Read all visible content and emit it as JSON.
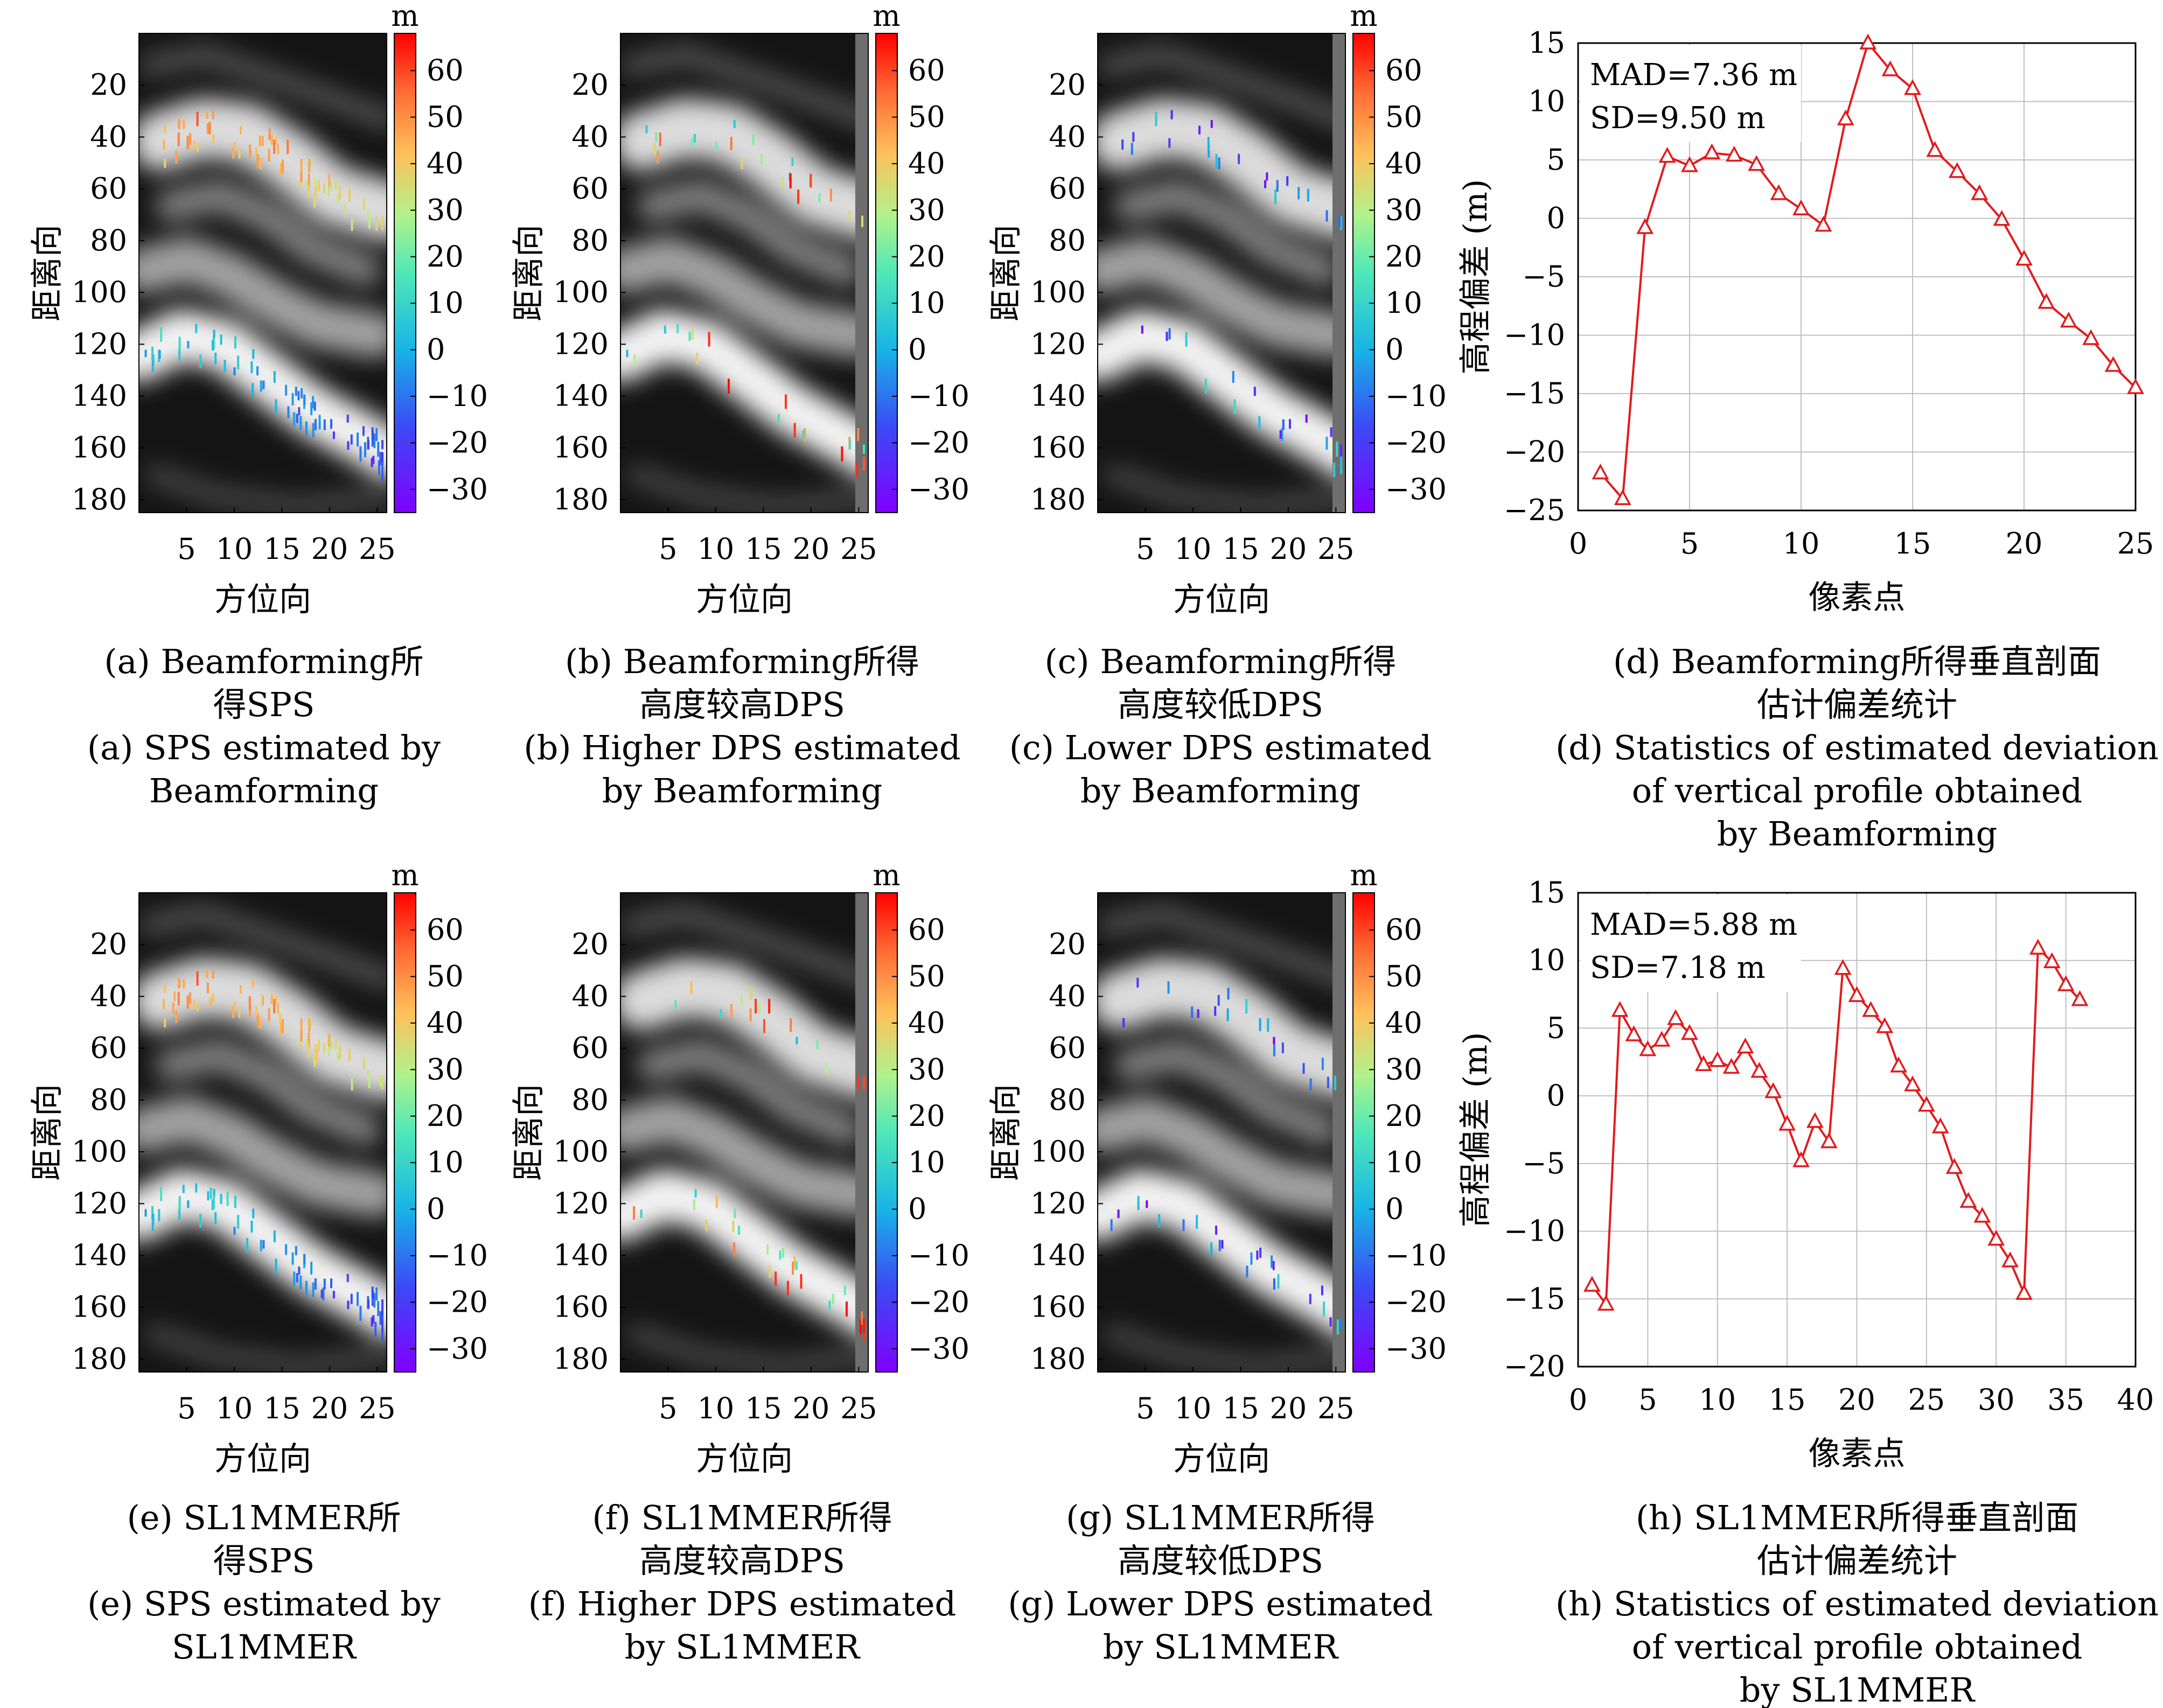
{
  "colors": {
    "line": "#e31a1c",
    "grid": "#bfbfbf",
    "axis": "#000000"
  },
  "colorbar": {
    "unit": "m",
    "ticks": [
      "60",
      "50",
      "40",
      "30",
      "20",
      "10",
      "0",
      "−10",
      "−20",
      "−30"
    ],
    "range": [
      -35,
      68
    ],
    "colormap": "rainbow (purple → blue → cyan → green → yellow → orange → red)"
  },
  "image_axes": {
    "ylabel": "距离向",
    "xlabel": "方位向",
    "yticks": [
      "20",
      "40",
      "60",
      "80",
      "100",
      "120",
      "140",
      "160",
      "180"
    ],
    "xticks": [
      "5",
      "10",
      "15",
      "20",
      "25"
    ]
  },
  "panels": [
    {
      "caption_cn": [
        "(a) Beamforming所",
        "得SPS"
      ],
      "caption_en": [
        "(a) SPS estimated by",
        "Beamforming"
      ]
    },
    {
      "caption_cn": [
        "(b) Beamforming所得",
        "高度较高DPS"
      ],
      "caption_en": [
        "(b) Higher DPS estimated",
        "by Beamforming"
      ]
    },
    {
      "caption_cn": [
        "(c) Beamforming所得",
        "高度较低DPS"
      ],
      "caption_en": [
        "(c) Lower DPS estimated",
        "by Beamforming"
      ]
    },
    {
      "caption_cn": [
        "(d) Beamforming所得垂直剖面",
        "估计偏差统计"
      ],
      "caption_en": [
        "(d) Statistics of estimated deviation",
        "of vertical profile obtained",
        "by Beamforming"
      ]
    },
    {
      "caption_cn": [
        "(e) SL1MMER所",
        "得SPS"
      ],
      "caption_en": [
        "(e) SPS estimated by",
        "SL1MMER"
      ]
    },
    {
      "caption_cn": [
        "(f) SL1MMER所得",
        "高度较高DPS"
      ],
      "caption_en": [
        "(f) Higher DPS estimated",
        "by SL1MMER"
      ]
    },
    {
      "caption_cn": [
        "(g) SL1MMER所得",
        "高度较低DPS"
      ],
      "caption_en": [
        "(g) Lower DPS estimated",
        "by SL1MMER"
      ]
    },
    {
      "caption_cn": [
        "(h) SL1MMER所得垂直剖面",
        "估计偏差统计"
      ],
      "caption_en": [
        "(h) Statistics of estimated deviation",
        "of vertical profile obtained",
        "by SL1MMER"
      ]
    }
  ],
  "chart_data": [
    {
      "type": "line",
      "panel": "d",
      "xlabel": "像素点",
      "ylabel": "高程偏差 (m)",
      "xlim": [
        0,
        25
      ],
      "ylim": [
        -25,
        15
      ],
      "xticks": [
        0,
        5,
        10,
        15,
        20,
        25
      ],
      "yticks": [
        15,
        10,
        5,
        0,
        -5,
        -10,
        -15,
        -20,
        -25
      ],
      "grid": true,
      "marker": "triangle",
      "annotations": [
        "MAD=7.36 m",
        "SD=9.50 m"
      ],
      "x": [
        1,
        2,
        3,
        4,
        5,
        6,
        7,
        8,
        9,
        10,
        11,
        12,
        13,
        14,
        15,
        16,
        17,
        18,
        19,
        20,
        21,
        22,
        23,
        24,
        25
      ],
      "y": [
        -21.8,
        -24,
        -0.8,
        5.3,
        4.5,
        5.6,
        5.4,
        4.6,
        2.1,
        0.8,
        -0.6,
        8.5,
        15,
        12.7,
        11.1,
        5.8,
        4,
        2.1,
        -0.1,
        -3.5,
        -7.2,
        -8.8,
        -10.3,
        -12.6,
        -14.5
      ]
    },
    {
      "type": "line",
      "panel": "h",
      "xlabel": "像素点",
      "ylabel": "高程偏差 (m)",
      "xlim": [
        0,
        40
      ],
      "ylim": [
        -20,
        15
      ],
      "xticks": [
        0,
        5,
        10,
        15,
        20,
        25,
        30,
        35,
        40
      ],
      "yticks": [
        15,
        10,
        5,
        0,
        -5,
        -10,
        -15,
        -20
      ],
      "grid": true,
      "marker": "triangle",
      "annotations": [
        "MAD=5.88 m",
        "SD=7.18 m"
      ],
      "x": [
        1,
        2,
        3,
        4,
        5,
        6,
        7,
        8,
        9,
        10,
        11,
        12,
        13,
        14,
        15,
        16,
        17,
        18,
        19,
        20,
        21,
        22,
        23,
        24,
        25,
        26,
        27,
        28,
        29,
        30,
        31,
        32,
        33,
        34,
        35,
        36
      ],
      "y": [
        -14,
        -15.4,
        6.3,
        4.5,
        3.4,
        4.1,
        5.7,
        4.6,
        2.3,
        2.6,
        2.1,
        3.6,
        1.8,
        0.3,
        -2.1,
        -4.8,
        -1.9,
        -3.4,
        9.4,
        7.4,
        6.3,
        5.1,
        2.2,
        0.8,
        -0.7,
        -2.3,
        -5.3,
        -7.8,
        -8.9,
        -10.6,
        -12.2,
        -14.6,
        10.9,
        9.9,
        8.2,
        7.1
      ]
    }
  ]
}
